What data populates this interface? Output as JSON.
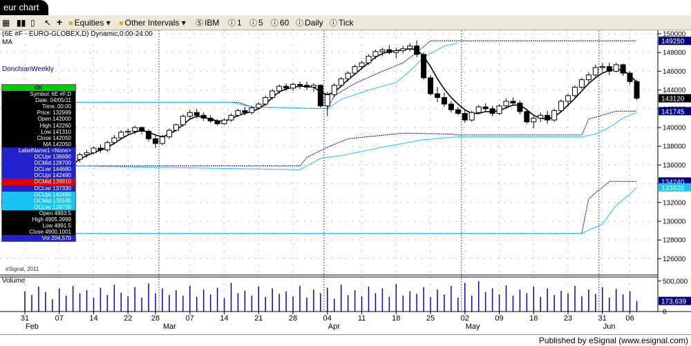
{
  "window": {
    "title": "eur chart"
  },
  "toolbar": {
    "equities": "Equities",
    "other_intervals": "Other Intervals",
    "symbol": "IBM",
    "i1": "1",
    "i5": "5",
    "i60": "60",
    "daily": "Daily",
    "tick": "Tick"
  },
  "chart_header": {
    "line1": "(6E #F - EURO-GLOBEX,D) Dynamic,0:00-24:00",
    "line2": "MA",
    "line3": "DonchianWeekly"
  },
  "databox": {
    "ok": "OK",
    "rows": [
      {
        "t": "Symbol: 6E #F,D",
        "c": "bk"
      },
      {
        "t": "Date: 04/05/11",
        "c": "bk"
      },
      {
        "t": "Time: 00:00",
        "c": "bk"
      },
      {
        "t": "Price: 132999",
        "c": "bk"
      },
      {
        "t": "Open 142000",
        "c": "bk"
      },
      {
        "t": "High 142260",
        "c": "bk"
      },
      {
        "t": "Low 141310",
        "c": "bk"
      },
      {
        "t": "Close 142050",
        "c": "bk"
      },
      {
        "t": "MA 142050",
        "c": "bk"
      },
      {
        "t": "LabelName1 <None>",
        "c": "bl"
      },
      {
        "t": "DCUpr 136690",
        "c": "bl"
      },
      {
        "t": "DCMid 128700",
        "c": "bl"
      },
      {
        "t": "DCLwr 144680",
        "c": "bl"
      },
      {
        "t": "DCUpr 142490",
        "c": "bl"
      },
      {
        "t": "DCMid 139910",
        "c": "rd"
      },
      {
        "t": "DCLwr 137330",
        "c": "bl"
      },
      {
        "t": "DCUpr 142490",
        "c": "cy"
      },
      {
        "t": "DCMid 135595",
        "c": "cy"
      },
      {
        "t": "DCLwr 128700",
        "c": "cy"
      },
      {
        "t": "Open 4893.5",
        "c": "bk"
      },
      {
        "t": "High 4905.3999",
        "c": "bk"
      },
      {
        "t": "Low 4891.5",
        "c": "bk"
      },
      {
        "t": "Close 4900.1001",
        "c": "bk"
      },
      {
        "t": "Vol 204,570",
        "c": "bl"
      }
    ]
  },
  "watermark": "eSignal, 2011",
  "footer": "Published by eSignal (www.esignal.com)",
  "chart_data": {
    "type": "candlestick",
    "ylim": [
      125000,
      150000
    ],
    "price_ticks": [
      {
        "v": 150000,
        "t": "150000"
      },
      {
        "v": 148000,
        "t": "148000"
      },
      {
        "v": 146000,
        "t": "146000"
      },
      {
        "v": 144000,
        "t": "144000"
      },
      {
        "v": 142000,
        "t": "142000"
      },
      {
        "v": 140000,
        "t": "140000"
      },
      {
        "v": 138000,
        "t": "138000"
      },
      {
        "v": 136000,
        "t": "136000"
      },
      {
        "v": 134000,
        "t": "134000"
      },
      {
        "v": 132000,
        "t": "132000"
      },
      {
        "v": 130000,
        "t": "130000"
      },
      {
        "v": 128000,
        "t": "128000"
      },
      {
        "v": 126000,
        "t": "126000"
      }
    ],
    "price_flags": [
      {
        "v": 149250,
        "t": "149250",
        "bg": "#000080",
        "fg": "#ffffff"
      },
      {
        "v": 143120,
        "t": "143120",
        "bg": "#000000",
        "fg": "#ffffff"
      },
      {
        "v": 141745,
        "t": "141745",
        "bg": "#000080",
        "fg": "#ffffff"
      },
      {
        "v": 134240,
        "t": "134240",
        "bg": "#000080",
        "fg": "#ffffff"
      },
      {
        "v": 133620,
        "t": "133620",
        "bg": "#19c4f0",
        "fg": "#ffffff"
      }
    ],
    "x_ticks": [
      {
        "i": 0,
        "t": "31"
      },
      {
        "i": 5,
        "t": "07"
      },
      {
        "i": 10,
        "t": "14"
      },
      {
        "i": 15,
        "t": "22"
      },
      {
        "i": 19,
        "t": "28"
      },
      {
        "i": 24,
        "t": "07"
      },
      {
        "i": 29,
        "t": "14"
      },
      {
        "i": 34,
        "t": "21"
      },
      {
        "i": 39,
        "t": "28"
      },
      {
        "i": 44,
        "t": "04"
      },
      {
        "i": 49,
        "t": "11"
      },
      {
        "i": 54,
        "t": "18"
      },
      {
        "i": 59,
        "t": "25"
      },
      {
        "i": 64,
        "t": "02"
      },
      {
        "i": 69,
        "t": "09"
      },
      {
        "i": 74,
        "t": "16"
      },
      {
        "i": 79,
        "t": "23"
      },
      {
        "i": 84,
        "t": "31"
      },
      {
        "i": 88,
        "t": "06"
      }
    ],
    "month_labels": [
      {
        "i": 0.7,
        "t": "Feb"
      },
      {
        "i": 20.7,
        "t": "Mar"
      },
      {
        "i": 44.7,
        "t": "Apr"
      },
      {
        "i": 64.7,
        "t": "May"
      },
      {
        "i": 84.7,
        "t": "Jun"
      }
    ],
    "month_separators": [
      20,
      44,
      64,
      84
    ],
    "volume": {
      "label": "Volume",
      "ticks": [
        {
          "v": 500000,
          "t": "500,000"
        },
        {
          "v": 0,
          "t": "0"
        }
      ],
      "last_flag": "173,639",
      "ymax": 520000,
      "values": [
        330000,
        270000,
        410000,
        320000,
        200000,
        380000,
        260000,
        420000,
        300000,
        350000,
        230000,
        390000,
        270000,
        440000,
        310000,
        250000,
        400000,
        230000,
        460000,
        300000,
        380000,
        270000,
        350000,
        260000,
        420000,
        240000,
        360000,
        280000,
        390000,
        220000,
        470000,
        300000,
        340000,
        260000,
        410000,
        240000,
        380000,
        290000,
        330000,
        250000,
        420000,
        230000,
        360000,
        300000,
        390000,
        210000,
        440000,
        270000,
        350000,
        250000,
        410000,
        300000,
        380000,
        240000,
        450000,
        260000,
        330000,
        290000,
        400000,
        240000,
        360000,
        280000,
        420000,
        230000,
        470000,
        260000,
        500000,
        320000,
        380000,
        280000,
        430000,
        260000,
        360000,
        300000,
        410000,
        240000,
        380000,
        270000,
        340000,
        300000,
        420000,
        250000,
        360000,
        290000,
        400000,
        230000,
        370000,
        280000,
        330000,
        173639
      ]
    },
    "candles": [
      [
        135800,
        136000,
        135400,
        135700
      ],
      [
        135700,
        135800,
        134900,
        135100
      ],
      [
        135100,
        135400,
        134500,
        134800
      ],
      [
        134800,
        135600,
        134700,
        135400
      ],
      [
        135400,
        135900,
        135200,
        135700
      ],
      [
        135700,
        136200,
        135500,
        136000
      ],
      [
        136000,
        136400,
        135600,
        135800
      ],
      [
        135800,
        136800,
        135700,
        136600
      ],
      [
        136600,
        137300,
        136300,
        137100
      ],
      [
        137100,
        137600,
        136800,
        137300
      ],
      [
        137300,
        138000,
        137200,
        137800
      ],
      [
        137800,
        138200,
        137300,
        137600
      ],
      [
        137600,
        138600,
        137400,
        138400
      ],
      [
        138400,
        139200,
        138200,
        138900
      ],
      [
        138900,
        139700,
        138700,
        139500
      ],
      [
        139500,
        139900,
        139200,
        139600
      ],
      [
        139600,
        140200,
        139300,
        140000
      ],
      [
        140000,
        140100,
        139300,
        139600
      ],
      [
        139600,
        139800,
        138500,
        138800
      ],
      [
        138800,
        139100,
        137800,
        138300
      ],
      [
        138300,
        139200,
        138100,
        139000
      ],
      [
        139000,
        139900,
        138800,
        139700
      ],
      [
        139700,
        140400,
        139600,
        140300
      ],
      [
        140300,
        141400,
        140100,
        141200
      ],
      [
        141200,
        141900,
        140900,
        141600
      ],
      [
        141600,
        142000,
        141000,
        141300
      ],
      [
        141300,
        141600,
        140700,
        141000
      ],
      [
        141000,
        141300,
        140500,
        140700
      ],
      [
        140700,
        140900,
        140200,
        140400
      ],
      [
        140400,
        141000,
        140300,
        140800
      ],
      [
        140800,
        141500,
        140600,
        141300
      ],
      [
        141300,
        142000,
        141100,
        141800
      ],
      [
        141800,
        142200,
        141300,
        141600
      ],
      [
        141600,
        142300,
        141400,
        142100
      ],
      [
        142100,
        142700,
        141900,
        142500
      ],
      [
        142500,
        143400,
        142300,
        143200
      ],
      [
        143200,
        144100,
        143000,
        143900
      ],
      [
        143900,
        144600,
        143600,
        144400
      ],
      [
        144400,
        144700,
        143900,
        144200
      ],
      [
        144200,
        144800,
        143900,
        144600
      ],
      [
        144600,
        144900,
        144100,
        144500
      ],
      [
        144500,
        144900,
        144000,
        144300
      ],
      [
        144300,
        144700,
        143800,
        144500
      ],
      [
        144500,
        144600,
        142100,
        142300
      ],
      [
        142300,
        143800,
        141200,
        143500
      ],
      [
        143500,
        144700,
        143200,
        144500
      ],
      [
        144500,
        145400,
        144300,
        145200
      ],
      [
        145200,
        146000,
        144900,
        145800
      ],
      [
        145800,
        146700,
        145600,
        146500
      ],
      [
        146500,
        147100,
        146200,
        146900
      ],
      [
        146900,
        147800,
        146700,
        147600
      ],
      [
        147600,
        148300,
        147300,
        148100
      ],
      [
        148100,
        148500,
        147600,
        148300
      ],
      [
        148300,
        148800,
        147800,
        148000
      ],
      [
        148000,
        148500,
        147400,
        148200
      ],
      [
        148200,
        148700,
        147900,
        148400
      ],
      [
        148400,
        149000,
        148100,
        148700
      ],
      [
        148700,
        149300,
        147500,
        147800
      ],
      [
        147800,
        148000,
        145100,
        145300
      ],
      [
        145300,
        145600,
        143400,
        143600
      ],
      [
        143600,
        144300,
        142700,
        143200
      ],
      [
        143200,
        143700,
        142200,
        142500
      ],
      [
        142500,
        142800,
        141600,
        141900
      ],
      [
        141900,
        142200,
        141300,
        141500
      ],
      [
        141500,
        141900,
        140500,
        140800
      ],
      [
        140800,
        141800,
        140600,
        141600
      ],
      [
        141600,
        142400,
        141400,
        142200
      ],
      [
        142200,
        142600,
        141700,
        142000
      ],
      [
        142000,
        142300,
        141200,
        141500
      ],
      [
        141500,
        142500,
        141300,
        142300
      ],
      [
        142300,
        143100,
        142000,
        142800
      ],
      [
        142800,
        143200,
        142300,
        142600
      ],
      [
        142600,
        142900,
        141400,
        141700
      ],
      [
        141700,
        142000,
        140400,
        140600
      ],
      [
        140600,
        141200,
        139900,
        141000
      ],
      [
        141000,
        141600,
        140600,
        141300
      ],
      [
        141300,
        141800,
        140400,
        140800
      ],
      [
        140800,
        142000,
        140600,
        141800
      ],
      [
        141800,
        143000,
        141600,
        142800
      ],
      [
        142800,
        143600,
        142300,
        143400
      ],
      [
        143400,
        144500,
        143200,
        144300
      ],
      [
        144300,
        145300,
        144100,
        145100
      ],
      [
        145100,
        145900,
        144800,
        145600
      ],
      [
        145600,
        146700,
        145400,
        146400
      ],
      [
        146400,
        146900,
        146000,
        146500
      ],
      [
        146500,
        146900,
        145600,
        146000
      ],
      [
        146000,
        146900,
        145900,
        146700
      ],
      [
        146700,
        146800,
        145500,
        145800
      ],
      [
        145800,
        146000,
        144600,
        144900
      ],
      [
        144900,
        145100,
        142900,
        143120
      ]
    ],
    "ma": [
      135700,
      135400,
      135100,
      135200,
      135500,
      135800,
      135900,
      136100,
      136600,
      137000,
      137300,
      137600,
      137900,
      138300,
      138800,
      139200,
      139500,
      139700,
      139500,
      139200,
      139000,
      139300,
      139700,
      140300,
      140900,
      141200,
      141100,
      140900,
      140700,
      140700,
      140900,
      141300,
      141500,
      141700,
      142000,
      142500,
      143200,
      143800,
      144100,
      144300,
      144400,
      144400,
      144300,
      143800,
      143500,
      143800,
      144400,
      145100,
      145700,
      146300,
      146900,
      147500,
      147900,
      148100,
      148200,
      148300,
      148400,
      148300,
      147600,
      146500,
      145200,
      144100,
      143200,
      142500,
      141900,
      141500,
      141500,
      141700,
      141700,
      141800,
      142100,
      142400,
      142400,
      141900,
      141300,
      141000,
      140900,
      141100,
      141700,
      142400,
      143100,
      143900,
      144700,
      145300,
      145800,
      146100,
      146200,
      146100,
      145600,
      144800
    ],
    "channels": [
      {
        "name": "weekly-upper",
        "color": "#000099",
        "dash": true,
        "values": [
          [
            0,
            142690
          ],
          [
            31,
            142690
          ],
          [
            33,
            142200
          ],
          [
            44,
            142000
          ],
          [
            45,
            143400
          ],
          [
            48,
            144700
          ],
          [
            52,
            146000
          ],
          [
            55,
            146900
          ],
          [
            57,
            148000
          ],
          [
            59,
            149250
          ],
          [
            89,
            149250
          ]
        ]
      },
      {
        "name": "weekly-lower",
        "color": "#000099",
        "dash": true,
        "values": [
          [
            0,
            128700
          ],
          [
            81,
            128700
          ],
          [
            82,
            132400
          ],
          [
            85,
            134240
          ],
          [
            89,
            134240
          ]
        ]
      },
      {
        "name": "mid-lower",
        "color": "#000099",
        "dash": true,
        "values": [
          [
            0,
            135900
          ],
          [
            40,
            135900
          ],
          [
            41,
            136800
          ],
          [
            44,
            137900
          ],
          [
            47,
            138800
          ],
          [
            55,
            139400
          ],
          [
            62,
            139300
          ],
          [
            63,
            139200
          ],
          [
            81,
            139200
          ],
          [
            82,
            140900
          ],
          [
            86,
            141745
          ],
          [
            89,
            141745
          ]
        ]
      },
      {
        "name": "upper-cyan",
        "color": "#19c4f0",
        "dash": false,
        "values": [
          [
            0,
            142690
          ],
          [
            30,
            142690
          ],
          [
            33,
            142200
          ],
          [
            44,
            142000
          ],
          [
            46,
            143000
          ],
          [
            50,
            144000
          ],
          [
            54,
            144800
          ],
          [
            56,
            146000
          ],
          [
            58,
            147500
          ],
          [
            61,
            148700
          ],
          [
            63,
            149000
          ]
        ]
      },
      {
        "name": "lower-cyan",
        "color": "#19c4f0",
        "dash": false,
        "values": [
          [
            0,
            135900
          ],
          [
            40,
            135500
          ],
          [
            41,
            135900
          ],
          [
            43,
            136700
          ],
          [
            46,
            137000
          ],
          [
            52,
            137900
          ],
          [
            55,
            138300
          ],
          [
            58,
            138700
          ],
          [
            63,
            139000
          ],
          [
            81,
            139000
          ],
          [
            83,
            139300
          ],
          [
            85,
            140000
          ],
          [
            87,
            141000
          ],
          [
            89,
            141600
          ]
        ]
      },
      {
        "name": "lowest-cyan",
        "color": "#19c4f0",
        "dash": false,
        "values": [
          [
            0,
            128700
          ],
          [
            81,
            128700
          ],
          [
            84,
            129700
          ],
          [
            86,
            131700
          ],
          [
            88,
            132900
          ],
          [
            89,
            133620
          ]
        ]
      }
    ]
  }
}
